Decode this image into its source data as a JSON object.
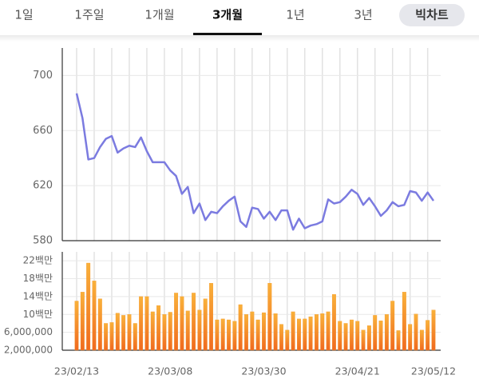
{
  "tabs": [
    {
      "label": "1일",
      "selected": false
    },
    {
      "label": "1주일",
      "selected": false
    },
    {
      "label": "1개월",
      "selected": false
    },
    {
      "label": "3개월",
      "selected": true
    },
    {
      "label": "1년",
      "selected": false
    },
    {
      "label": "3년",
      "selected": false
    }
  ],
  "button": "빅차트",
  "chart_data": [
    {
      "type": "line",
      "color": "#7b7be0",
      "values": [
        687,
        669,
        639,
        640,
        648,
        654,
        656,
        644,
        647,
        649,
        648,
        655,
        645,
        637,
        637,
        637,
        631,
        627,
        614,
        619,
        600,
        607,
        595,
        601,
        600,
        605,
        609,
        612,
        594,
        590,
        604,
        603,
        596,
        601,
        595,
        602,
        602,
        588,
        596,
        589,
        591,
        592,
        594,
        610,
        607,
        608,
        612,
        617,
        614,
        606,
        611,
        605,
        598,
        602,
        608,
        605,
        606,
        616,
        615,
        609,
        615,
        609
      ],
      "ylim": [
        580,
        720
      ],
      "yticks": [
        580,
        620,
        660,
        700
      ],
      "grid": true
    },
    {
      "type": "bar",
      "color": "#f5901e",
      "categories": [
        "23/02/13",
        null,
        null,
        null,
        null,
        null,
        null,
        null,
        null,
        null,
        null,
        null,
        null,
        null,
        null,
        null,
        "23/03/08",
        null,
        null,
        null,
        null,
        null,
        null,
        null,
        null,
        null,
        null,
        null,
        null,
        null,
        null,
        null,
        "23/03/30",
        null,
        null,
        null,
        null,
        null,
        null,
        null,
        null,
        null,
        null,
        null,
        null,
        null,
        null,
        null,
        "23/04/21",
        null,
        null,
        null,
        null,
        null,
        null,
        null,
        null,
        null,
        null,
        null,
        null,
        "23/05/12"
      ],
      "values": [
        13000000,
        15000000,
        21500000,
        17500000,
        13500000,
        8000000,
        8200000,
        10300000,
        9800000,
        10000000,
        8000000,
        14000000,
        14000000,
        10600000,
        12000000,
        10000000,
        10500000,
        14800000,
        14000000,
        10800000,
        14800000,
        11000000,
        13500000,
        17000000,
        8800000,
        9000000,
        8800000,
        8500000,
        12200000,
        10000000,
        10600000,
        8800000,
        10400000,
        17000000,
        10200000,
        7800000,
        6500000,
        10600000,
        9000000,
        9000000,
        9500000,
        10000000,
        10200000,
        10600000,
        14500000,
        8500000,
        8000000,
        8800000,
        8500000,
        6500000,
        7500000,
        9800000,
        8600000,
        10000000,
        13000000,
        6400000,
        15000000,
        7800000,
        10100000,
        6500000,
        8700000,
        11000000
      ],
      "ylim": [
        2000000,
        24000000
      ],
      "yticks": [
        {
          "value": 2000000,
          "label": "2,000,000"
        },
        {
          "value": 6000000,
          "label": "6,000,000"
        },
        {
          "value": 10000000,
          "label": "10백만"
        },
        {
          "value": 14000000,
          "label": "14백만"
        },
        {
          "value": 18000000,
          "label": "18백만"
        },
        {
          "value": 22000000,
          "label": "22백만"
        }
      ],
      "grid": true
    }
  ]
}
